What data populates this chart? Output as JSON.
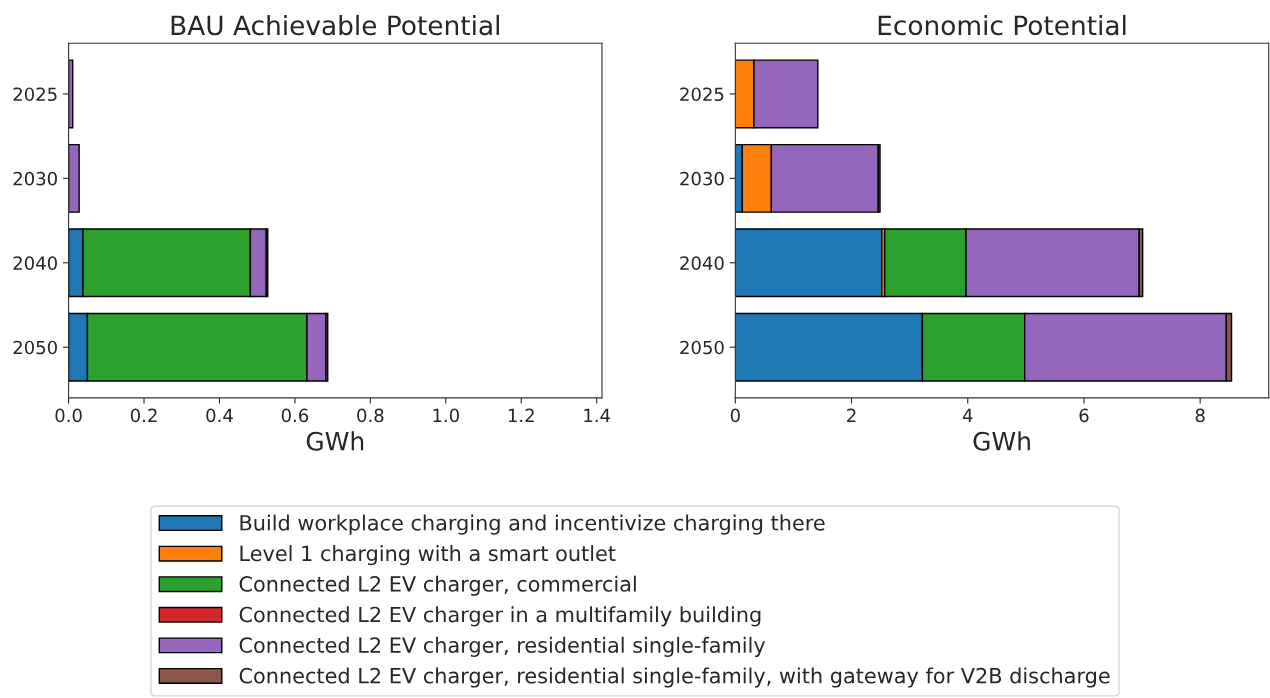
{
  "chart_data": [
    {
      "type": "bar",
      "title": "BAU Achievable Potential",
      "xlabel": "GWh",
      "orientation": "horizontal",
      "stacked": true,
      "categories": [
        "2025",
        "2030",
        "2040",
        "2050"
      ],
      "xlim": [
        0,
        1.414
      ],
      "xticks": [
        {
          "value": 0,
          "label": "0.0"
        },
        {
          "value": 0.2,
          "label": "0.2"
        },
        {
          "value": 0.4,
          "label": "0.4"
        },
        {
          "value": 0.6,
          "label": "0.6"
        },
        {
          "value": 0.8,
          "label": "0.8"
        },
        {
          "value": 1.0,
          "label": "1.0"
        },
        {
          "value": 1.2,
          "label": "1.2"
        },
        {
          "value": 1.4,
          "label": "1.4"
        }
      ],
      "grid": false,
      "legend": "bottom",
      "series": [
        {
          "name": "Build workplace charging and incentivize charging there",
          "color": "#1f77b4",
          "values": [
            null,
            null,
            0.038,
            0.05
          ]
        },
        {
          "name": "Level 1 charging with a smart outlet",
          "color": "#ff7f0e",
          "values": [
            null,
            null,
            null,
            null
          ]
        },
        {
          "name": "Connected L2 EV charger, commercial",
          "color": "#2ca02c",
          "values": [
            null,
            null,
            0.444,
            0.582
          ]
        },
        {
          "name": "Connected L2 EV charger in a multifamily building",
          "color": "#d62728",
          "values": [
            null,
            null,
            null,
            null
          ]
        },
        {
          "name": "Connected L2 EV charger, residential single-family",
          "color": "#9467bd",
          "values": [
            0.011,
            0.028,
            0.042,
            0.05
          ]
        },
        {
          "name": "Connected L2 EV charger, residential single-family, with gateway for V2B discharge",
          "color": "#8c564b",
          "values": [
            null,
            null,
            0.004,
            0.005
          ]
        }
      ]
    },
    {
      "type": "bar",
      "title": "Economic Potential",
      "xlabel": "GWh",
      "orientation": "horizontal",
      "stacked": true,
      "categories": [
        "2025",
        "2030",
        "2040",
        "2050"
      ],
      "xlim": [
        0,
        9.18
      ],
      "xticks": [
        0,
        2,
        4,
        6,
        8
      ],
      "grid": false,
      "series": [
        {
          "color": "#1f77b4",
          "values": [
            null,
            0.12,
            2.52,
            3.22
          ]
        },
        {
          "color": "#ff7f0e",
          "values": [
            0.32,
            0.5,
            0.05,
            null
          ]
        },
        {
          "color": "#2ca02c",
          "values": [
            null,
            null,
            1.4,
            1.76
          ]
        },
        {
          "color": "#d62728",
          "values": [
            null,
            null,
            null,
            null
          ]
        },
        {
          "color": "#9467bd",
          "values": [
            1.1,
            1.84,
            2.98,
            3.47
          ]
        },
        {
          "color": "#8c564b",
          "values": [
            null,
            0.03,
            0.06,
            0.09
          ]
        }
      ]
    }
  ]
}
